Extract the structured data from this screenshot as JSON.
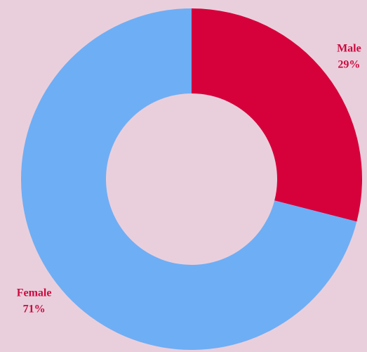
{
  "chart_data": {
    "type": "donut",
    "categories": [
      "Male",
      "Female"
    ],
    "values": [
      29,
      71
    ],
    "value_labels": [
      "29%",
      "71%"
    ],
    "colors": [
      "#d6003b",
      "#6eaef5"
    ]
  }
}
